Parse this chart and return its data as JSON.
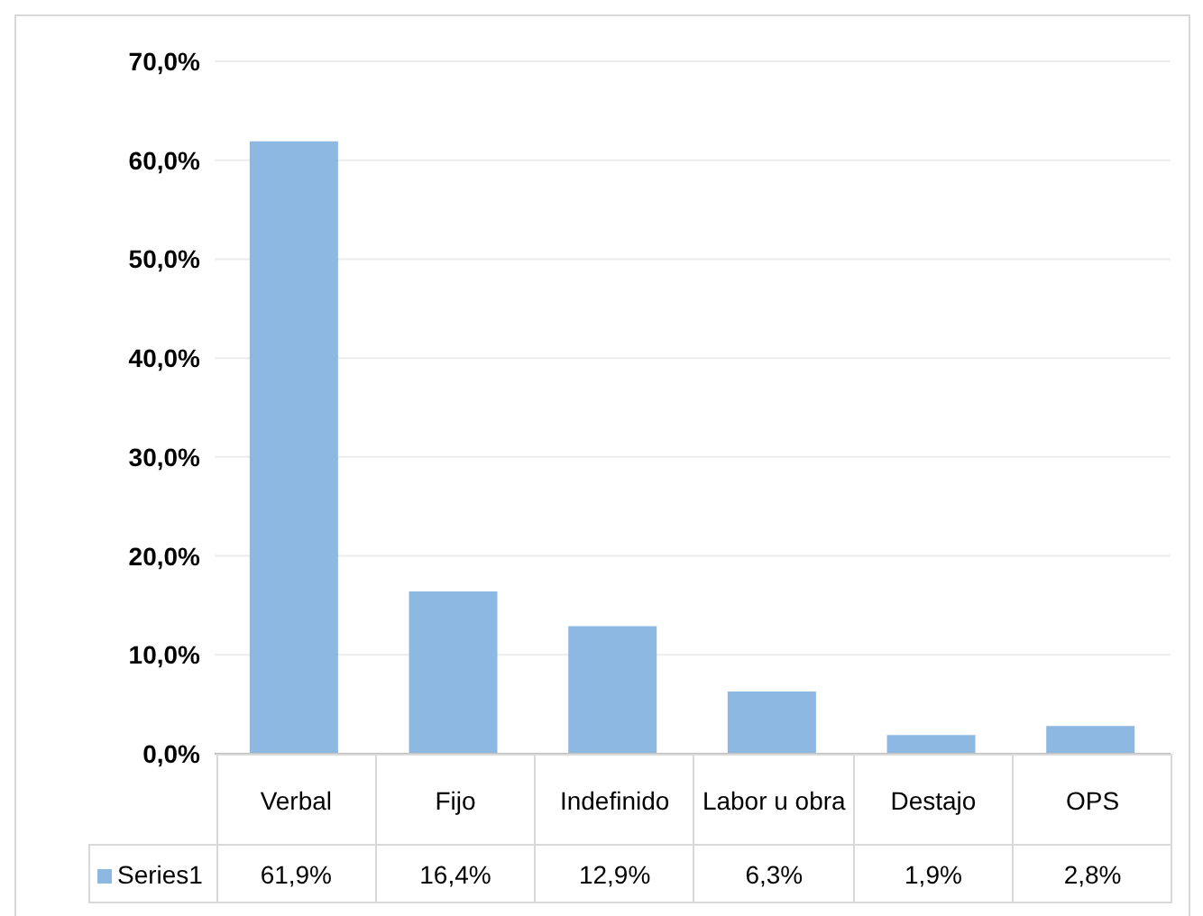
{
  "chart_data": {
    "type": "bar",
    "categories": [
      "Verbal",
      "Fijo",
      "Indefinido",
      "Labor u obra",
      "Destajo",
      "OPS"
    ],
    "series": [
      {
        "name": "Series1",
        "color": "#8db8e2",
        "values": [
          61.9,
          16.4,
          12.9,
          6.3,
          1.9,
          2.8
        ],
        "value_labels": [
          "61,9%",
          "16,4%",
          "12,9%",
          "6,3%",
          "1,9%",
          "2,8%"
        ]
      }
    ],
    "ylim": [
      0,
      70
    ],
    "yticks": [
      {
        "value": 0,
        "label": "0,0%"
      },
      {
        "value": 10,
        "label": "10,0%"
      },
      {
        "value": 20,
        "label": "20,0%"
      },
      {
        "value": 30,
        "label": "30,0%"
      },
      {
        "value": 40,
        "label": "40,0%"
      },
      {
        "value": 50,
        "label": "50,0%"
      },
      {
        "value": 60,
        "label": "60,0%"
      },
      {
        "value": 70,
        "label": "70,0%"
      }
    ],
    "grid": "y"
  }
}
